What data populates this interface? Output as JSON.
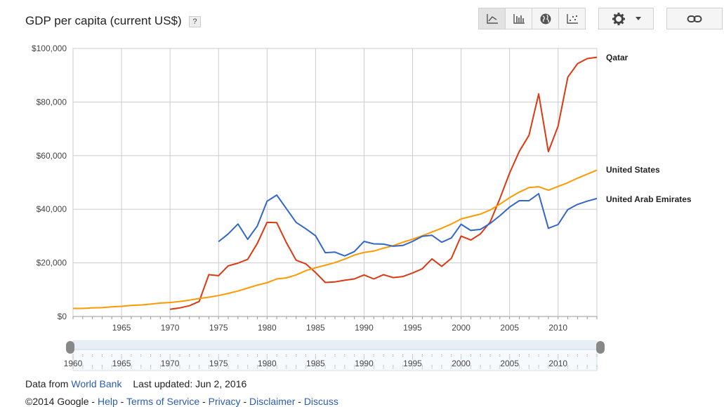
{
  "header": {
    "title": "GDP per capita (current US$)",
    "help_label": "?"
  },
  "toolbar": {
    "buttons": [
      {
        "icon": "line-chart-icon",
        "active": true
      },
      {
        "icon": "bar-chart-icon",
        "active": false
      },
      {
        "icon": "globe-map-icon",
        "active": false
      },
      {
        "icon": "scatter-chart-icon",
        "active": false
      }
    ],
    "settings_icon": "gear-icon",
    "settings_dropdown_icon": "caret-down-icon",
    "link_icon": "link-icon"
  },
  "chart_data": {
    "type": "line",
    "title": "GDP per capita (current US$)",
    "xlabel": "",
    "ylabel": "",
    "xlim": [
      1960,
      2014
    ],
    "ylim": [
      0,
      100000
    ],
    "x_ticks": [
      1965,
      1970,
      1975,
      1980,
      1985,
      1990,
      1995,
      2000,
      2005,
      2010
    ],
    "x_tick_labels": [
      "1965",
      "1970",
      "1975",
      "1980",
      "1985",
      "1990",
      "1995",
      "2000",
      "2005",
      "2010"
    ],
    "y_ticks": [
      0,
      20000,
      40000,
      60000,
      80000,
      100000
    ],
    "y_tick_labels": [
      "$0",
      "$20,000",
      "$40,000",
      "$60,000",
      "$80,000",
      "$100,000"
    ],
    "grid": true,
    "legend_position": "right, at line ends",
    "series": [
      {
        "name": "Qatar",
        "color": "#dc3912",
        "x": [
          1970,
          1971,
          1972,
          1973,
          1974,
          1975,
          1976,
          1977,
          1978,
          1979,
          1980,
          1981,
          1982,
          1983,
          1984,
          1985,
          1986,
          1987,
          1988,
          1989,
          1990,
          1991,
          1992,
          1993,
          1994,
          1995,
          1996,
          1997,
          1998,
          1999,
          2000,
          2001,
          2002,
          2003,
          2004,
          2005,
          2006,
          2007,
          2008,
          2009,
          2010,
          2011,
          2012,
          2013,
          2014
        ],
        "y": [
          2700,
          3200,
          4000,
          5600,
          15600,
          15200,
          18900,
          19900,
          21300,
          27300,
          35100,
          35000,
          27500,
          21000,
          19600,
          16400,
          12700,
          12900,
          13500,
          14000,
          15500,
          14000,
          15600,
          14500,
          14900,
          16200,
          17800,
          21500,
          18700,
          21700,
          30000,
          28500,
          30800,
          35200,
          44000,
          53500,
          61600,
          67600,
          83000,
          61500,
          71000,
          89300,
          94300,
          96200,
          96700
        ]
      },
      {
        "name": "United States",
        "color": "#ff9900",
        "x": [
          1960,
          1961,
          1962,
          1963,
          1964,
          1965,
          1966,
          1967,
          1968,
          1969,
          1970,
          1971,
          1972,
          1973,
          1974,
          1975,
          1976,
          1977,
          1978,
          1979,
          1980,
          1981,
          1982,
          1983,
          1984,
          1985,
          1986,
          1987,
          1988,
          1989,
          1990,
          1991,
          1992,
          1993,
          1994,
          1995,
          1996,
          1997,
          1998,
          1999,
          2000,
          2001,
          2002,
          2003,
          2004,
          2005,
          2006,
          2007,
          2008,
          2009,
          2010,
          2011,
          2012,
          2013,
          2014
        ],
        "y": [
          3000,
          3000,
          3200,
          3300,
          3600,
          3800,
          4100,
          4300,
          4600,
          5000,
          5200,
          5600,
          6100,
          6700,
          7200,
          7800,
          8600,
          9500,
          10600,
          11700,
          12600,
          14000,
          14400,
          15500,
          17100,
          18200,
          19100,
          20100,
          21400,
          22900,
          23900,
          24400,
          25500,
          26400,
          27700,
          28800,
          30100,
          31500,
          32900,
          34500,
          36400,
          37300,
          38200,
          39700,
          41900,
          44300,
          46400,
          48100,
          48400,
          47100,
          48500,
          49900,
          51600,
          53100,
          54600
        ]
      },
      {
        "name": "United Arab Emirates",
        "color": "#3366cc",
        "x": [
          1975,
          1976,
          1977,
          1978,
          1979,
          1980,
          1981,
          1982,
          1983,
          1984,
          1985,
          1986,
          1987,
          1988,
          1989,
          1990,
          1991,
          1992,
          1993,
          1994,
          1995,
          1996,
          1997,
          1998,
          1999,
          2000,
          2001,
          2002,
          2003,
          2004,
          2005,
          2006,
          2007,
          2008,
          2009,
          2010,
          2011,
          2012,
          2013,
          2014
        ],
        "y": [
          27900,
          30800,
          34500,
          28800,
          33800,
          43000,
          45300,
          40200,
          35100,
          32700,
          30100,
          23800,
          24000,
          22600,
          24200,
          28000,
          27100,
          27000,
          26200,
          26500,
          28000,
          29900,
          30300,
          27700,
          29300,
          34400,
          32100,
          32500,
          34700,
          37600,
          40800,
          43200,
          43200,
          45800,
          32900,
          34300,
          39900,
          41800,
          43000,
          44000
        ]
      }
    ]
  },
  "legend": {
    "qatar": "Qatar",
    "us": "United States",
    "uae": "United Arab Emirates"
  },
  "range_slider": {
    "ticks": [
      "1960",
      "1965",
      "1970",
      "1975",
      "1980",
      "1985",
      "1990",
      "1995",
      "2000",
      "2005",
      "2010"
    ]
  },
  "footer": {
    "data_from_prefix": "Data from",
    "data_source": "World Bank",
    "last_updated": "Last updated: Jun 2, 2016",
    "copyright": "©2014 Google",
    "sep": " - ",
    "links": [
      "Help",
      "Terms of Service",
      "Privacy",
      "Disclaimer",
      "Discuss"
    ]
  }
}
